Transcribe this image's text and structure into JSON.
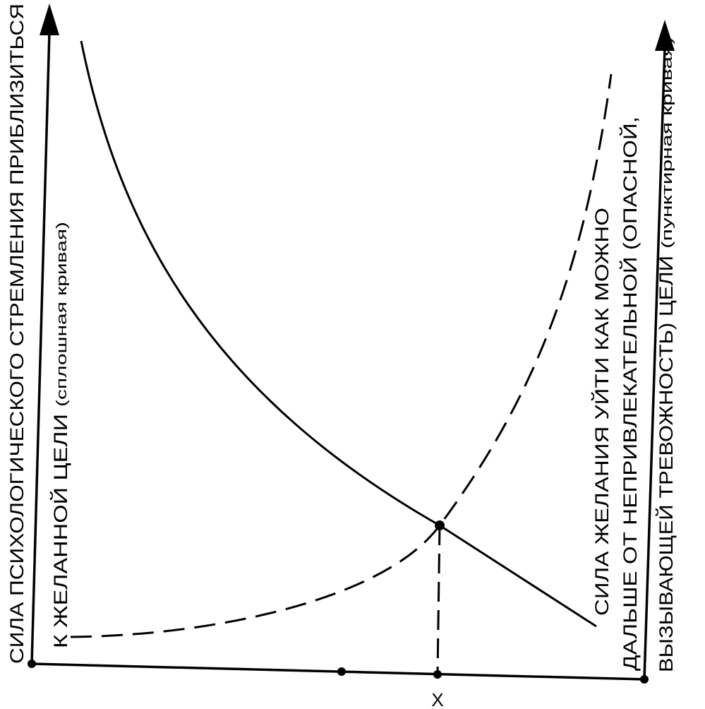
{
  "left_axis": {
    "line1": "СИЛА ПСИХОЛОГИЧЕСКОГО СТРЕМЛЕНИЯ ПРИБЛИЗИТЬСЯ",
    "line2_main": "К ЖЕЛАННОЙ ЦЕЛИ",
    "line2_note": "(сплошная кривая)"
  },
  "right_axis": {
    "line1": "СИЛА ЖЕЛАНИЯ УЙТИ КАК МОЖНО",
    "line2": "ДАЛЬШЕ ОТ  НЕПРИВЛЕКАТЕЛЬНОЙ  (ОПАСНОЙ,",
    "line3_main": "ВЫЗЫВАЮЩЕЙ  ТРЕВОЖНОСТЬ) ЦЕЛИ",
    "line3_note": "(пунктирная кривая)"
  },
  "x_marker_label": "X",
  "colors": {
    "ink": "#000000",
    "background": "#ffffff"
  }
}
